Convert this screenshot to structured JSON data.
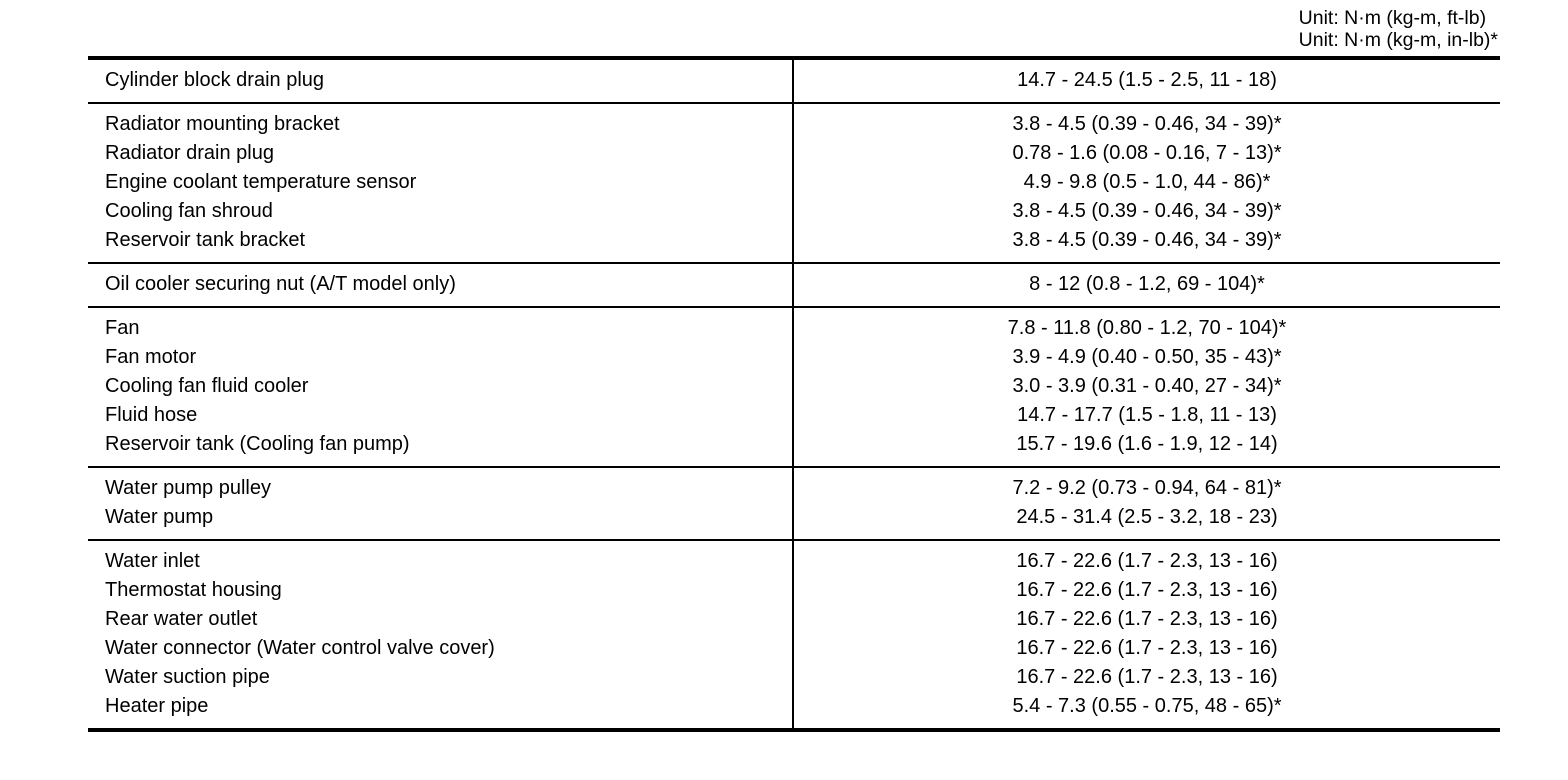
{
  "units": [
    "Unit: N·m (kg-m, ft-lb)",
    "Unit: N·m (kg-m, in-lb)*"
  ],
  "groups": [
    {
      "items": [
        [
          "Cylinder block drain plug",
          "14.7 - 24.5 (1.5 - 2.5, 11 - 18)"
        ]
      ]
    },
    {
      "items": [
        [
          "Radiator mounting bracket",
          "3.8 - 4.5 (0.39 - 0.46, 34 - 39)*"
        ],
        [
          "Radiator drain plug",
          "0.78 - 1.6 (0.08 - 0.16, 7 - 13)*"
        ],
        [
          "Engine coolant temperature sensor",
          "4.9 - 9.8 (0.5 - 1.0, 44 - 86)*"
        ],
        [
          "Cooling fan shroud",
          "3.8 - 4.5 (0.39 - 0.46, 34 - 39)*"
        ],
        [
          "Reservoir tank bracket",
          "3.8 - 4.5 (0.39 - 0.46, 34 - 39)*"
        ]
      ]
    },
    {
      "items": [
        [
          "Oil cooler securing nut (A/T model only)",
          "8 - 12 (0.8 - 1.2, 69 - 104)*"
        ]
      ]
    },
    {
      "items": [
        [
          "Fan",
          "7.8 - 11.8 (0.80 - 1.2, 70 - 104)*"
        ],
        [
          "Fan motor",
          "3.9 - 4.9 (0.40 - 0.50, 35 - 43)*"
        ],
        [
          "Cooling fan fluid cooler",
          "3.0 - 3.9 (0.31 - 0.40, 27 - 34)*"
        ],
        [
          "Fluid hose",
          "14.7 - 17.7 (1.5 - 1.8, 11 - 13)"
        ],
        [
          "Reservoir tank (Cooling fan pump)",
          "15.7 - 19.6 (1.6 - 1.9, 12 - 14)"
        ]
      ]
    },
    {
      "items": [
        [
          "Water pump pulley",
          "7.2 - 9.2 (0.73 - 0.94, 64 - 81)*"
        ],
        [
          "Water pump",
          "24.5 - 31.4 (2.5 - 3.2, 18 - 23)"
        ]
      ]
    },
    {
      "items": [
        [
          "Water inlet",
          "16.7 - 22.6 (1.7 - 2.3, 13 - 16)"
        ],
        [
          "Thermostat housing",
          "16.7 - 22.6 (1.7 - 2.3, 13 - 16)"
        ],
        [
          "Rear water outlet",
          "16.7 - 22.6 (1.7 - 2.3, 13 - 16)"
        ],
        [
          "Water connector (Water control valve cover)",
          "16.7 - 22.6 (1.7 - 2.3, 13 - 16)"
        ],
        [
          "Water suction pipe",
          "16.7 - 22.6 (1.7 - 2.3, 13 - 16)"
        ],
        [
          "Heater pipe",
          "5.4 - 7.3 (0.55 - 0.75, 48 - 65)*"
        ]
      ]
    }
  ]
}
